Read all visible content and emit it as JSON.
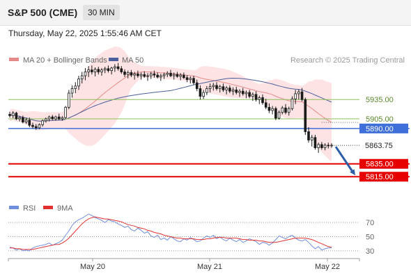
{
  "header": {
    "title": "S&P 500 (CME)",
    "timeframe": "30 MIN"
  },
  "datetime": "Thursday, May 22, 2025 1:55:46 AM CET",
  "legend": {
    "ma20_bb": "MA 20 + Bollinger Bands",
    "ma50": "MA 50",
    "credit": "Research © 2025 Trading Central",
    "rsi": "RSI",
    "rsi_ma": "9MA"
  },
  "colors": {
    "candle": "#1a1a1a",
    "bb_fill": "#fde3e3",
    "ma20": "#e68a8a",
    "ma50": "#4a5f9c",
    "green_level": "#8dbf5a",
    "green_text": "#5a8a2a",
    "blue_level": "#3f6fd8",
    "red_level": "#e60000",
    "arrow": "#2e5fa8",
    "rsi": "#6f8fdc",
    "rsi_ma": "#e03030"
  },
  "chart_data": {
    "type": "candlestick",
    "x_ticks": [
      "May 20",
      "May 21",
      "May 22"
    ],
    "y_range": [
      5785,
      6012
    ],
    "levels": [
      {
        "value": 5935.0,
        "label": "5935.00",
        "kind": "green"
      },
      {
        "value": 5905.0,
        "label": "5905.00",
        "kind": "green"
      },
      {
        "value": 5890.0,
        "label": "5890.00",
        "kind": "blue"
      },
      {
        "value": 5835.0,
        "label": "5835.00",
        "kind": "red"
      },
      {
        "value": 5815.0,
        "label": "5815.00",
        "kind": "red"
      }
    ],
    "last_price": {
      "value": 5863.75,
      "label": "5863.75"
    },
    "candles": [
      [
        5912,
        5916,
        5907,
        5910
      ],
      [
        5910,
        5917,
        5906,
        5914
      ],
      [
        5914,
        5916,
        5903,
        5905
      ],
      [
        5905,
        5909,
        5901,
        5907
      ],
      [
        5907,
        5910,
        5898,
        5900
      ],
      [
        5900,
        5906,
        5897,
        5903
      ],
      [
        5903,
        5907,
        5892,
        5895
      ],
      [
        5895,
        5899,
        5890,
        5893
      ],
      [
        5893,
        5897,
        5888,
        5891
      ],
      [
        5891,
        5898,
        5889,
        5896
      ],
      [
        5896,
        5904,
        5893,
        5902
      ],
      [
        5902,
        5907,
        5899,
        5905
      ],
      [
        5905,
        5910,
        5901,
        5908
      ],
      [
        5908,
        5911,
        5903,
        5905
      ],
      [
        5905,
        5910,
        5902,
        5908
      ],
      [
        5908,
        5913,
        5903,
        5905
      ],
      [
        5905,
        5909,
        5902,
        5907
      ],
      [
        5907,
        5925,
        5905,
        5923
      ],
      [
        5923,
        5950,
        5920,
        5945
      ],
      [
        5945,
        5957,
        5938,
        5952
      ],
      [
        5952,
        5962,
        5945,
        5956
      ],
      [
        5956,
        5972,
        5950,
        5967
      ],
      [
        5967,
        5978,
        5960,
        5972
      ],
      [
        5972,
        5984,
        5965,
        5978
      ],
      [
        5978,
        5987,
        5970,
        5981
      ],
      [
        5981,
        5988,
        5974,
        5978
      ],
      [
        5978,
        5985,
        5971,
        5982
      ],
      [
        5982,
        5986,
        5974,
        5978
      ],
      [
        5978,
        5984,
        5972,
        5981
      ],
      [
        5981,
        5986,
        5976,
        5983
      ],
      [
        5983,
        5988,
        5977,
        5980
      ],
      [
        5980,
        5986,
        5974,
        5984
      ],
      [
        5984,
        5990,
        5978,
        5986
      ],
      [
        5986,
        5992,
        5980,
        5983
      ],
      [
        5983,
        5987,
        5975,
        5978
      ],
      [
        5978,
        5982,
        5970,
        5974
      ],
      [
        5974,
        5980,
        5968,
        5977
      ],
      [
        5977,
        5981,
        5970,
        5973
      ],
      [
        5973,
        5978,
        5966,
        5975
      ],
      [
        5975,
        5980,
        5969,
        5972
      ],
      [
        5972,
        5977,
        5966,
        5974
      ],
      [
        5974,
        5979,
        5969,
        5971
      ],
      [
        5971,
        5976,
        5964,
        5972
      ],
      [
        5972,
        5978,
        5967,
        5975
      ],
      [
        5975,
        5980,
        5969,
        5973
      ],
      [
        5973,
        5977,
        5968,
        5970
      ],
      [
        5970,
        5975,
        5964,
        5972
      ],
      [
        5972,
        5977,
        5967,
        5974
      ],
      [
        5974,
        5979,
        5970,
        5976
      ],
      [
        5976,
        5981,
        5970,
        5972
      ],
      [
        5972,
        5977,
        5966,
        5974
      ],
      [
        5974,
        5978,
        5969,
        5971
      ],
      [
        5971,
        5976,
        5965,
        5973
      ],
      [
        5973,
        5977,
        5967,
        5969
      ],
      [
        5969,
        5973,
        5962,
        5966
      ],
      [
        5966,
        5971,
        5960,
        5968
      ],
      [
        5968,
        5972,
        5958,
        5961
      ],
      [
        5961,
        5966,
        5948,
        5952
      ],
      [
        5952,
        5957,
        5935,
        5940
      ],
      [
        5940,
        5950,
        5936,
        5946
      ],
      [
        5946,
        5956,
        5942,
        5952
      ],
      [
        5952,
        5960,
        5946,
        5955
      ],
      [
        5955,
        5961,
        5949,
        5957
      ],
      [
        5957,
        5962,
        5949,
        5952
      ],
      [
        5952,
        5958,
        5946,
        5955
      ],
      [
        5955,
        5960,
        5947,
        5950
      ],
      [
        5950,
        5956,
        5943,
        5953
      ],
      [
        5953,
        5957,
        5945,
        5948
      ],
      [
        5948,
        5954,
        5942,
        5950
      ],
      [
        5950,
        5955,
        5943,
        5946
      ],
      [
        5946,
        5951,
        5939,
        5948
      ],
      [
        5948,
        5953,
        5941,
        5944
      ],
      [
        5944,
        5949,
        5937,
        5946
      ],
      [
        5946,
        5950,
        5937,
        5940
      ],
      [
        5940,
        5946,
        5933,
        5943
      ],
      [
        5943,
        5948,
        5932,
        5935
      ],
      [
        5935,
        5941,
        5928,
        5938
      ],
      [
        5938,
        5943,
        5927,
        5930
      ],
      [
        5930,
        5936,
        5920,
        5923
      ],
      [
        5923,
        5929,
        5914,
        5918
      ],
      [
        5918,
        5925,
        5912,
        5921
      ],
      [
        5921,
        5924,
        5903,
        5906
      ],
      [
        5906,
        5918,
        5904,
        5915
      ],
      [
        5915,
        5925,
        5912,
        5922
      ],
      [
        5922,
        5928,
        5912,
        5915
      ],
      [
        5915,
        5924,
        5910,
        5921
      ],
      [
        5921,
        5940,
        5918,
        5936
      ],
      [
        5936,
        5950,
        5928,
        5944
      ],
      [
        5944,
        5951,
        5935,
        5947
      ],
      [
        5947,
        5953,
        5932,
        5935
      ],
      [
        5935,
        5938,
        5880,
        5885
      ],
      [
        5885,
        5892,
        5868,
        5872
      ],
      [
        5872,
        5880,
        5862,
        5876
      ],
      [
        5876,
        5880,
        5857,
        5860
      ],
      [
        5860,
        5868,
        5852,
        5865
      ],
      [
        5865,
        5869,
        5857,
        5860
      ],
      [
        5860,
        5867,
        5856,
        5864
      ],
      [
        5864,
        5868,
        5859,
        5863
      ],
      [
        5863,
        5867,
        5860,
        5864
      ]
    ],
    "rsi": {
      "y_ticks": [
        70,
        50,
        30
      ],
      "rsi": [
        35,
        34,
        31,
        33,
        30,
        31,
        30,
        34,
        36,
        37,
        38,
        39,
        41,
        38,
        40,
        42,
        45,
        52,
        58,
        66,
        71,
        74,
        76,
        79,
        82,
        80,
        77,
        75,
        73,
        70,
        74,
        72,
        71,
        68,
        66,
        63,
        65,
        60,
        58,
        62,
        59,
        55,
        57,
        51,
        49,
        52,
        46,
        48,
        45,
        50,
        47,
        44,
        43,
        47,
        45,
        49,
        46,
        43,
        44,
        48,
        51,
        49,
        52,
        47,
        50,
        46,
        44,
        48,
        45,
        43,
        46,
        42,
        44,
        47,
        45,
        43,
        39,
        42,
        41,
        38,
        41,
        46,
        51,
        49,
        47,
        50,
        52,
        48,
        45,
        44,
        46,
        42,
        37,
        33,
        36,
        31,
        33,
        34,
        34
      ],
      "ma": [
        34,
        34,
        33,
        33,
        32,
        32,
        32,
        32,
        33,
        34,
        35,
        36,
        37,
        38,
        39,
        39,
        41,
        44,
        48,
        53,
        58,
        63,
        68,
        72,
        75,
        77,
        78,
        77,
        76,
        75,
        75,
        74,
        73,
        72,
        71,
        69,
        67,
        66,
        65,
        63,
        62,
        61,
        59,
        58,
        56,
        55,
        54,
        52,
        51,
        50,
        49,
        48,
        48,
        47,
        47,
        47,
        47,
        46,
        46,
        46,
        47,
        47,
        48,
        49,
        49,
        49,
        48,
        48,
        48,
        48,
        47,
        46,
        46,
        45,
        45,
        45,
        44,
        44,
        43,
        42,
        42,
        42,
        43,
        44,
        45,
        46,
        47,
        48,
        48,
        48,
        48,
        47,
        46,
        44,
        42,
        40,
        38,
        36,
        35
      ]
    }
  }
}
